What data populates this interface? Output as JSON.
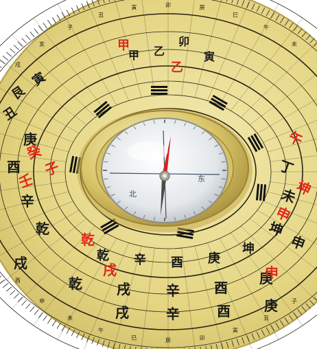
{
  "photo": {
    "subject": "luopan",
    "colors": {
      "plate": "#e2d27a",
      "plate_light": "#efe4a0",
      "ink": "#1a1a1a",
      "red": "#e0281c",
      "brass_ring": "#c9b45a",
      "glass": "#e9ecef"
    }
  },
  "rings": {
    "left_column_black": [
      "乾",
      "戌",
      "辛",
      "酉",
      "庚"
    ],
    "left_column_red": [
      "癸",
      "子",
      "壬"
    ],
    "left_outer_chars": [
      "丑",
      "艮",
      "寅"
    ],
    "right_column_black": [
      "丁",
      "未",
      "坤",
      "申"
    ],
    "right_column_red": [
      "午",
      "坤",
      "申"
    ],
    "top_chars_black": [
      "乙",
      "卯",
      "甲",
      "寅"
    ],
    "top_chars_red": [
      "甲",
      "乙"
    ],
    "bottom_row_1": [
      "乾",
      "辛",
      "酉",
      "庚",
      "坤"
    ],
    "bottom_row_2": [
      "乾",
      "戌",
      "辛",
      "酉",
      "庚"
    ],
    "bottom_row_3": [
      "戌",
      "辛",
      "酉",
      "庚"
    ],
    "bottom_red": [
      "乾",
      "戌",
      "申"
    ],
    "trigram_labels": [
      "☰",
      "☱",
      "☲",
      "☳",
      "☴",
      "☵",
      "☶",
      "☷"
    ]
  },
  "compass": {
    "needle_colors": [
      "#d8231b",
      "#444444"
    ],
    "tick_count": 36
  }
}
